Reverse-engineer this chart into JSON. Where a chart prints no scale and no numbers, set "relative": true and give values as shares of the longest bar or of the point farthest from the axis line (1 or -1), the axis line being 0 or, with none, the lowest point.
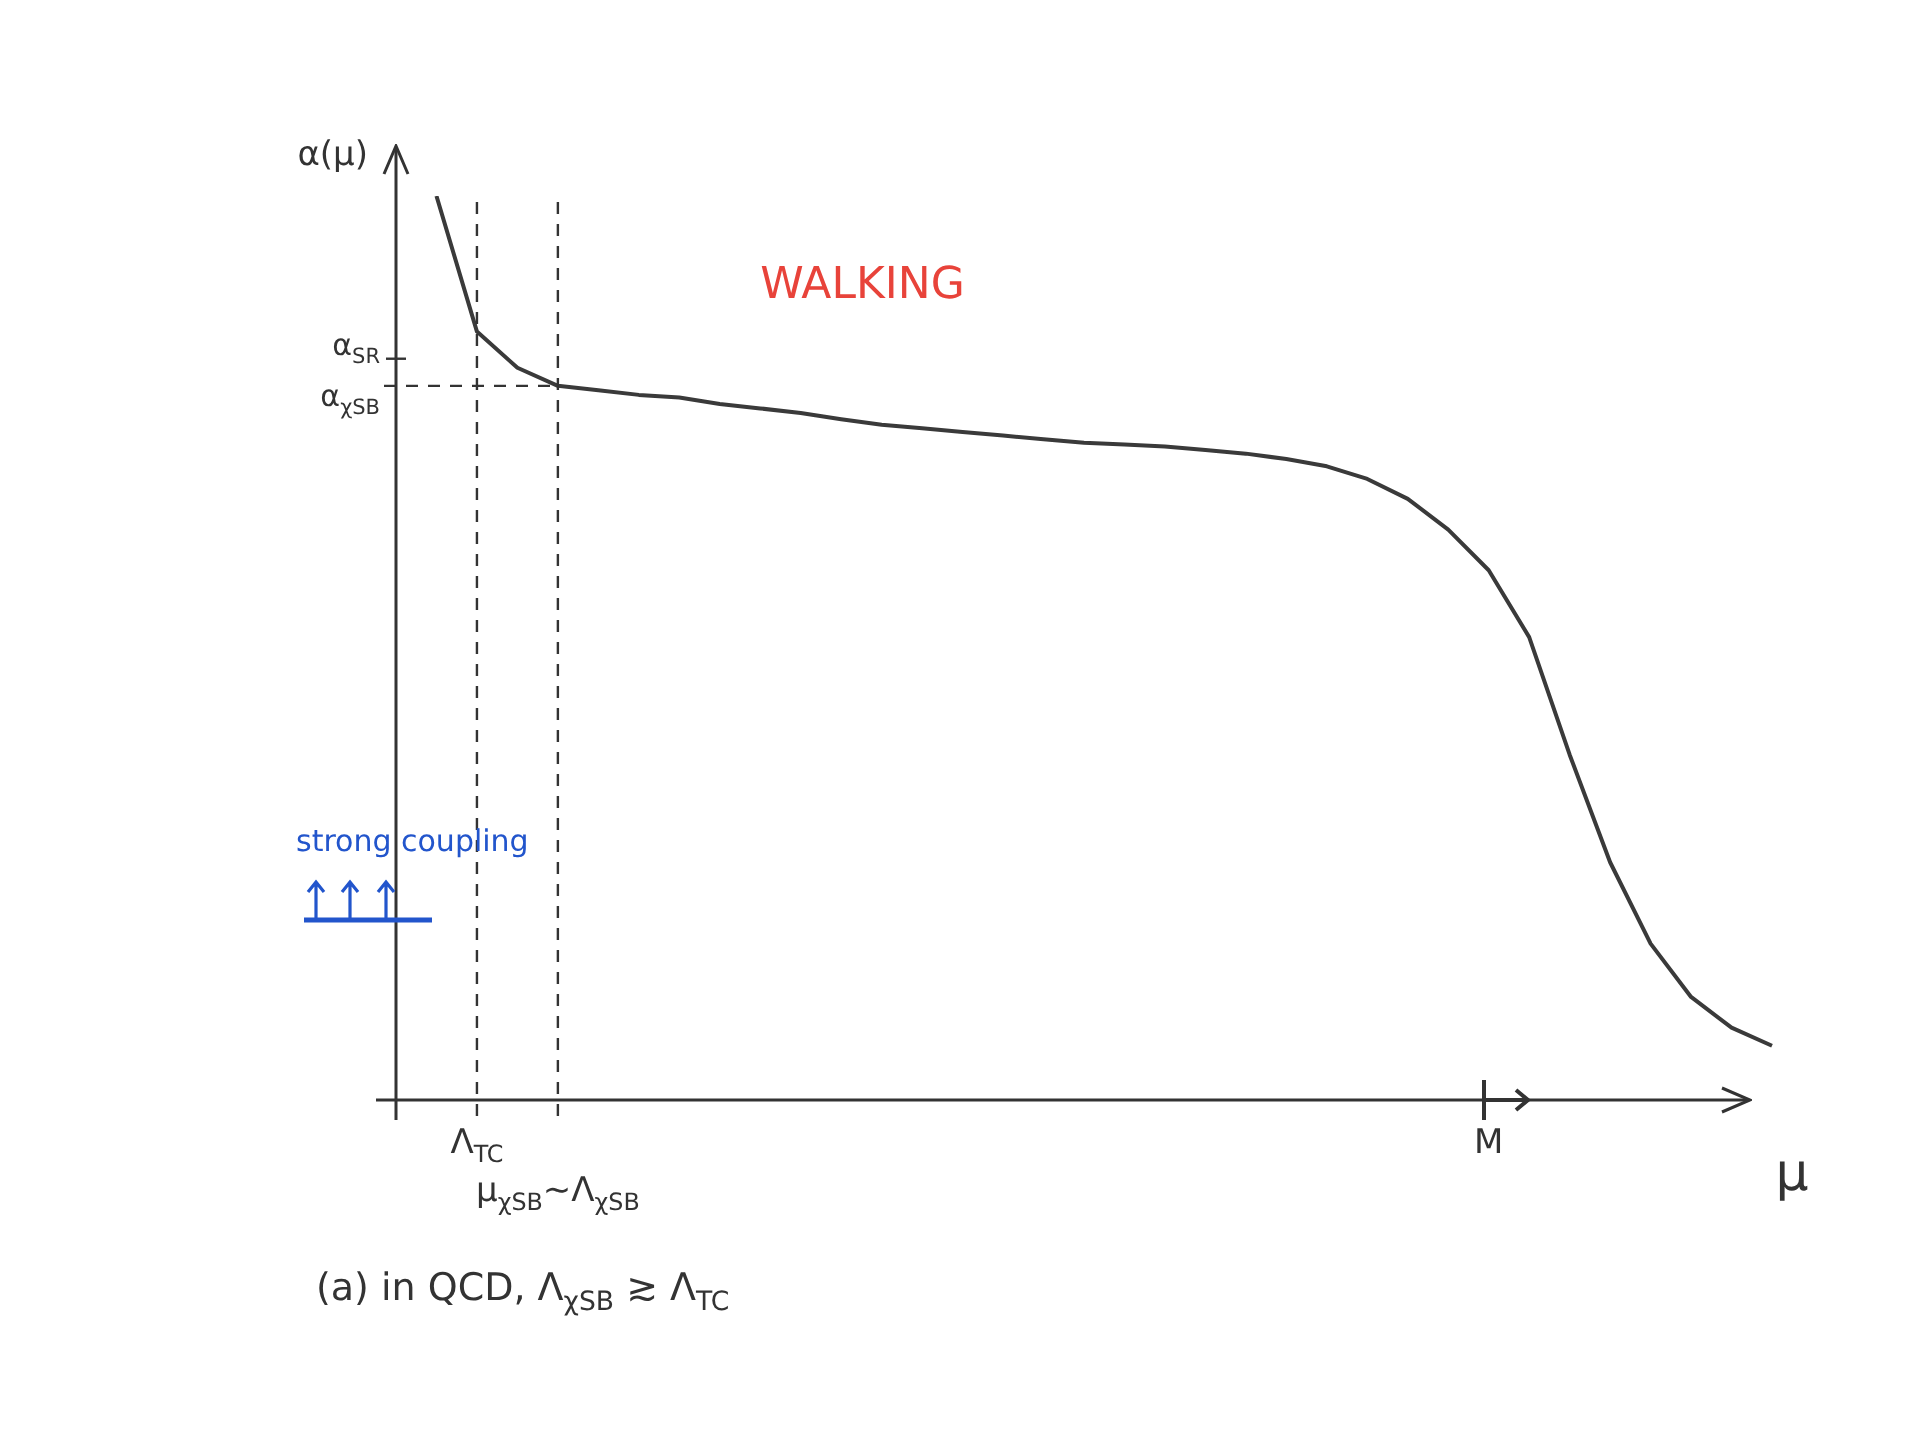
{
  "chart_data": {
    "type": "line",
    "relative": true,
    "xlabel": "μ",
    "ylabel": "α(μ)",
    "categories": [
      null,
      null,
      "Λ$_{TC}$",
      null,
      "μ$_{χSB}$~Λ$_{χSB}$",
      null,
      null,
      null,
      null,
      null,
      null,
      null,
      null,
      null,
      null,
      null,
      null,
      null,
      null,
      null,
      null,
      null,
      null,
      null,
      null,
      null,
      null,
      "M",
      null,
      null,
      null,
      null,
      null,
      null,
      null
    ],
    "series": [
      {
        "color": "#3a3a3a",
        "values": [
          null,
          1.0,
          0.85,
          0.81,
          0.79,
          0.785,
          0.78,
          0.777,
          0.77,
          0.765,
          0.76,
          0.753,
          0.747,
          0.743,
          0.739,
          0.735,
          0.731,
          0.727,
          0.725,
          0.723,
          0.719,
          0.715,
          0.709,
          0.701,
          0.687,
          0.665,
          0.631,
          0.586,
          0.512,
          0.382,
          0.263,
          0.173,
          0.114,
          0.08,
          0.06
        ]
      }
    ],
    "ref_lines": [
      {
        "axis": "x",
        "value": "Λ$_{TC}$",
        "line_style": "dashed"
      },
      {
        "axis": "x",
        "value": "μ$_{χSB}$~Λ$_{χSB}$",
        "line_style": "dashed"
      },
      {
        "axis": "y",
        "value": 0.82,
        "label": "α$_{SR}$"
      },
      {
        "axis": "y",
        "value": 0.79,
        "label": "α$_{χSB}$",
        "line_style": "dashed"
      }
    ],
    "annotations": [
      "WALKING",
      "strong coupling",
      "(a) in QCD, Λ$_{χSB}$ ≳ Λ$_{TC}$"
    ],
    "marker": "none",
    "line_style": "solid",
    "grid": false,
    "legend": false
  }
}
